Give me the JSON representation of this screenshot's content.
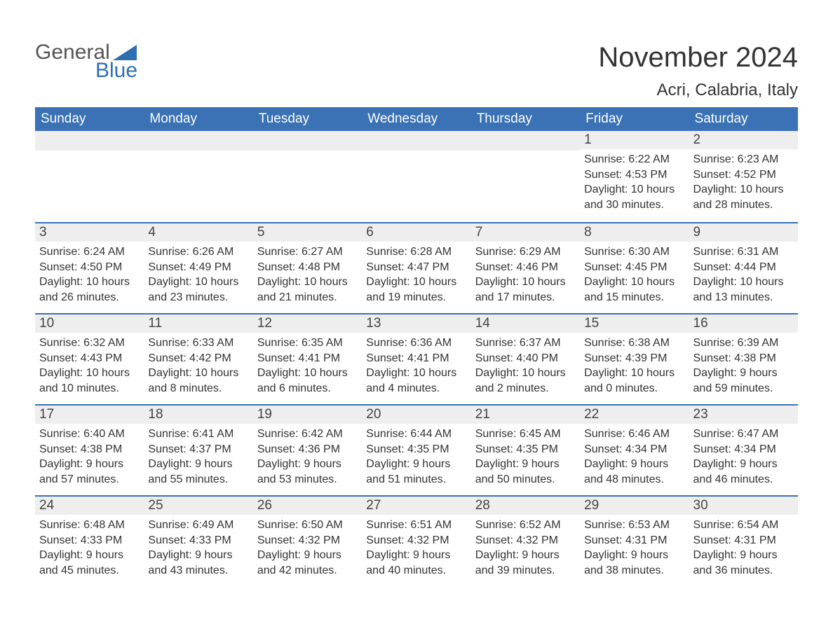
{
  "logo": {
    "word1": "General",
    "word2": "Blue",
    "word1_color": "#555555",
    "word2_color": "#2e6fb0",
    "triangle_color": "#2e6fb0"
  },
  "title": {
    "month": "November 2024",
    "location": "Acri, Calabria, Italy"
  },
  "colors": {
    "header_bg": "#3a72b5",
    "header_text": "#ffffff",
    "daynum_bg": "#eeeeee",
    "row_border": "#3a72b5",
    "body_text": "#333333",
    "page_bg": "#ffffff"
  },
  "day_headers": [
    "Sunday",
    "Monday",
    "Tuesday",
    "Wednesday",
    "Thursday",
    "Friday",
    "Saturday"
  ],
  "weeks": [
    [
      null,
      null,
      null,
      null,
      null,
      {
        "num": "1",
        "sunrise": "Sunrise: 6:22 AM",
        "sunset": "Sunset: 4:53 PM",
        "daylight1": "Daylight: 10 hours",
        "daylight2": "and 30 minutes."
      },
      {
        "num": "2",
        "sunrise": "Sunrise: 6:23 AM",
        "sunset": "Sunset: 4:52 PM",
        "daylight1": "Daylight: 10 hours",
        "daylight2": "and 28 minutes."
      }
    ],
    [
      {
        "num": "3",
        "sunrise": "Sunrise: 6:24 AM",
        "sunset": "Sunset: 4:50 PM",
        "daylight1": "Daylight: 10 hours",
        "daylight2": "and 26 minutes."
      },
      {
        "num": "4",
        "sunrise": "Sunrise: 6:26 AM",
        "sunset": "Sunset: 4:49 PM",
        "daylight1": "Daylight: 10 hours",
        "daylight2": "and 23 minutes."
      },
      {
        "num": "5",
        "sunrise": "Sunrise: 6:27 AM",
        "sunset": "Sunset: 4:48 PM",
        "daylight1": "Daylight: 10 hours",
        "daylight2": "and 21 minutes."
      },
      {
        "num": "6",
        "sunrise": "Sunrise: 6:28 AM",
        "sunset": "Sunset: 4:47 PM",
        "daylight1": "Daylight: 10 hours",
        "daylight2": "and 19 minutes."
      },
      {
        "num": "7",
        "sunrise": "Sunrise: 6:29 AM",
        "sunset": "Sunset: 4:46 PM",
        "daylight1": "Daylight: 10 hours",
        "daylight2": "and 17 minutes."
      },
      {
        "num": "8",
        "sunrise": "Sunrise: 6:30 AM",
        "sunset": "Sunset: 4:45 PM",
        "daylight1": "Daylight: 10 hours",
        "daylight2": "and 15 minutes."
      },
      {
        "num": "9",
        "sunrise": "Sunrise: 6:31 AM",
        "sunset": "Sunset: 4:44 PM",
        "daylight1": "Daylight: 10 hours",
        "daylight2": "and 13 minutes."
      }
    ],
    [
      {
        "num": "10",
        "sunrise": "Sunrise: 6:32 AM",
        "sunset": "Sunset: 4:43 PM",
        "daylight1": "Daylight: 10 hours",
        "daylight2": "and 10 minutes."
      },
      {
        "num": "11",
        "sunrise": "Sunrise: 6:33 AM",
        "sunset": "Sunset: 4:42 PM",
        "daylight1": "Daylight: 10 hours",
        "daylight2": "and 8 minutes."
      },
      {
        "num": "12",
        "sunrise": "Sunrise: 6:35 AM",
        "sunset": "Sunset: 4:41 PM",
        "daylight1": "Daylight: 10 hours",
        "daylight2": "and 6 minutes."
      },
      {
        "num": "13",
        "sunrise": "Sunrise: 6:36 AM",
        "sunset": "Sunset: 4:41 PM",
        "daylight1": "Daylight: 10 hours",
        "daylight2": "and 4 minutes."
      },
      {
        "num": "14",
        "sunrise": "Sunrise: 6:37 AM",
        "sunset": "Sunset: 4:40 PM",
        "daylight1": "Daylight: 10 hours",
        "daylight2": "and 2 minutes."
      },
      {
        "num": "15",
        "sunrise": "Sunrise: 6:38 AM",
        "sunset": "Sunset: 4:39 PM",
        "daylight1": "Daylight: 10 hours",
        "daylight2": "and 0 minutes."
      },
      {
        "num": "16",
        "sunrise": "Sunrise: 6:39 AM",
        "sunset": "Sunset: 4:38 PM",
        "daylight1": "Daylight: 9 hours",
        "daylight2": "and 59 minutes."
      }
    ],
    [
      {
        "num": "17",
        "sunrise": "Sunrise: 6:40 AM",
        "sunset": "Sunset: 4:38 PM",
        "daylight1": "Daylight: 9 hours",
        "daylight2": "and 57 minutes."
      },
      {
        "num": "18",
        "sunrise": "Sunrise: 6:41 AM",
        "sunset": "Sunset: 4:37 PM",
        "daylight1": "Daylight: 9 hours",
        "daylight2": "and 55 minutes."
      },
      {
        "num": "19",
        "sunrise": "Sunrise: 6:42 AM",
        "sunset": "Sunset: 4:36 PM",
        "daylight1": "Daylight: 9 hours",
        "daylight2": "and 53 minutes."
      },
      {
        "num": "20",
        "sunrise": "Sunrise: 6:44 AM",
        "sunset": "Sunset: 4:35 PM",
        "daylight1": "Daylight: 9 hours",
        "daylight2": "and 51 minutes."
      },
      {
        "num": "21",
        "sunrise": "Sunrise: 6:45 AM",
        "sunset": "Sunset: 4:35 PM",
        "daylight1": "Daylight: 9 hours",
        "daylight2": "and 50 minutes."
      },
      {
        "num": "22",
        "sunrise": "Sunrise: 6:46 AM",
        "sunset": "Sunset: 4:34 PM",
        "daylight1": "Daylight: 9 hours",
        "daylight2": "and 48 minutes."
      },
      {
        "num": "23",
        "sunrise": "Sunrise: 6:47 AM",
        "sunset": "Sunset: 4:34 PM",
        "daylight1": "Daylight: 9 hours",
        "daylight2": "and 46 minutes."
      }
    ],
    [
      {
        "num": "24",
        "sunrise": "Sunrise: 6:48 AM",
        "sunset": "Sunset: 4:33 PM",
        "daylight1": "Daylight: 9 hours",
        "daylight2": "and 45 minutes."
      },
      {
        "num": "25",
        "sunrise": "Sunrise: 6:49 AM",
        "sunset": "Sunset: 4:33 PM",
        "daylight1": "Daylight: 9 hours",
        "daylight2": "and 43 minutes."
      },
      {
        "num": "26",
        "sunrise": "Sunrise: 6:50 AM",
        "sunset": "Sunset: 4:32 PM",
        "daylight1": "Daylight: 9 hours",
        "daylight2": "and 42 minutes."
      },
      {
        "num": "27",
        "sunrise": "Sunrise: 6:51 AM",
        "sunset": "Sunset: 4:32 PM",
        "daylight1": "Daylight: 9 hours",
        "daylight2": "and 40 minutes."
      },
      {
        "num": "28",
        "sunrise": "Sunrise: 6:52 AM",
        "sunset": "Sunset: 4:32 PM",
        "daylight1": "Daylight: 9 hours",
        "daylight2": "and 39 minutes."
      },
      {
        "num": "29",
        "sunrise": "Sunrise: 6:53 AM",
        "sunset": "Sunset: 4:31 PM",
        "daylight1": "Daylight: 9 hours",
        "daylight2": "and 38 minutes."
      },
      {
        "num": "30",
        "sunrise": "Sunrise: 6:54 AM",
        "sunset": "Sunset: 4:31 PM",
        "daylight1": "Daylight: 9 hours",
        "daylight2": "and 36 minutes."
      }
    ]
  ]
}
